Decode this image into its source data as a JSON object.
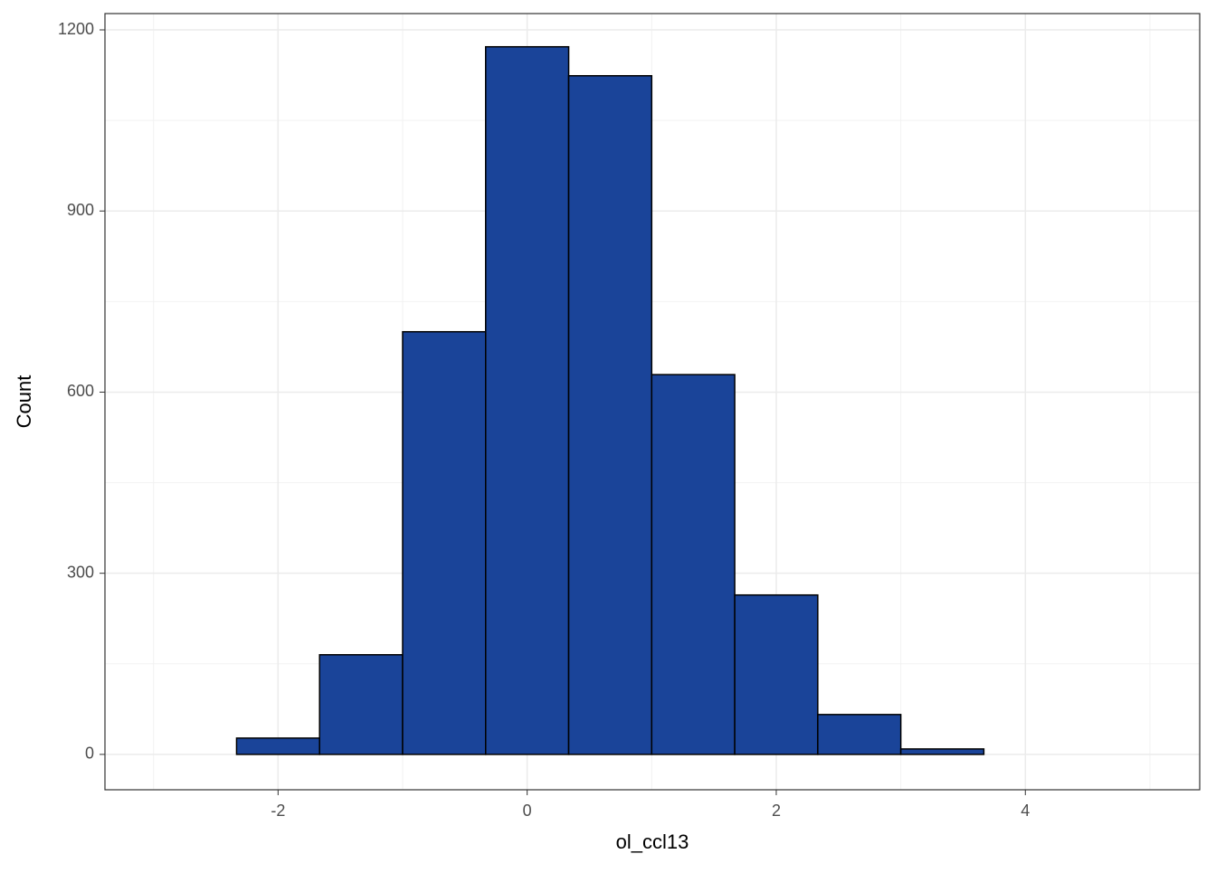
{
  "chart_data": {
    "type": "histogram",
    "x_label": "ol_ccl13",
    "y_label": "Count",
    "bins": [
      -3,
      -2.3333,
      -1.6667,
      -1,
      -0.3333,
      0.3333,
      1,
      1.6667,
      2.3333,
      3,
      3.6667,
      4.3333,
      5
    ],
    "values": [
      0,
      27,
      165,
      700,
      1172,
      1124,
      629,
      264,
      66,
      9,
      0,
      0
    ],
    "color": "#1a4499",
    "edgecolor": "#000000",
    "xlim": [
      -3.39,
      5.4
    ],
    "ylim": [
      -58.6,
      1227
    ],
    "xticks": [
      -2,
      0,
      2,
      4
    ],
    "yticks": [
      0,
      300,
      600,
      900,
      1200
    ],
    "minor_xticks": [
      -3,
      -1,
      1,
      3,
      5
    ],
    "minor_yticks": [
      150,
      450,
      750,
      1050
    ],
    "grid": true
  }
}
